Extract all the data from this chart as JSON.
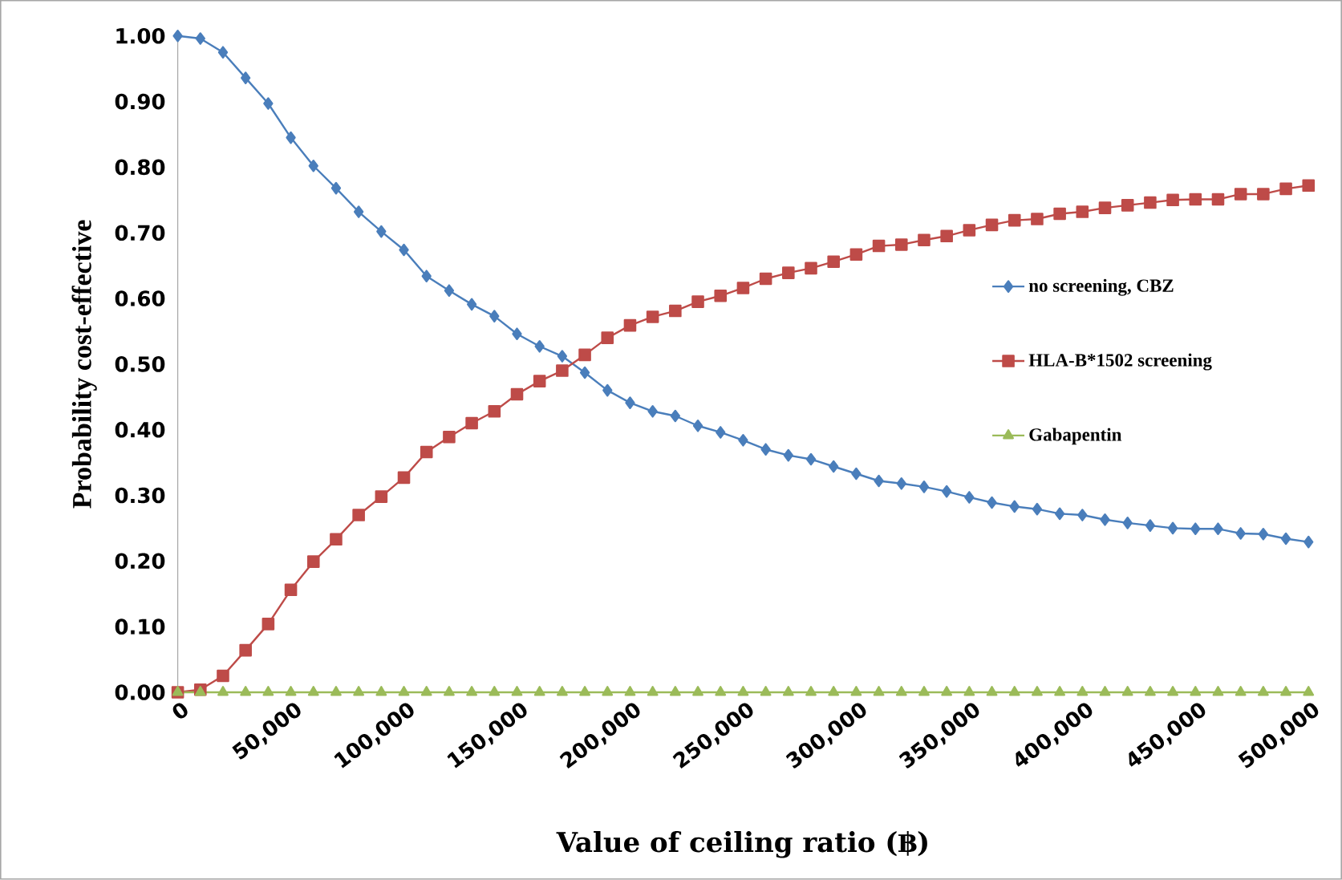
{
  "chart_data": {
    "type": "line",
    "xlabel": "Value of ceiling ratio (฿)",
    "ylabel": "Probability cost-effective",
    "x": [
      0,
      10000,
      20000,
      30000,
      40000,
      50000,
      60000,
      70000,
      80000,
      90000,
      100000,
      110000,
      120000,
      130000,
      140000,
      150000,
      160000,
      170000,
      180000,
      190000,
      200000,
      210000,
      220000,
      230000,
      240000,
      250000,
      260000,
      270000,
      280000,
      290000,
      300000,
      310000,
      320000,
      330000,
      340000,
      350000,
      360000,
      370000,
      380000,
      390000,
      400000,
      410000,
      420000,
      430000,
      440000,
      450000,
      460000,
      470000,
      480000,
      490000,
      500000
    ],
    "series": [
      {
        "name": "no screening, CBZ",
        "color": "#4a7ebb",
        "marker": "diamond",
        "values": [
          1.0,
          0.996,
          0.975,
          0.936,
          0.897,
          0.845,
          0.802,
          0.768,
          0.732,
          0.702,
          0.674,
          0.634,
          0.612,
          0.591,
          0.573,
          0.546,
          0.527,
          0.512,
          0.487,
          0.46,
          0.441,
          0.428,
          0.421,
          0.406,
          0.396,
          0.384,
          0.37,
          0.361,
          0.355,
          0.344,
          0.333,
          0.322,
          0.318,
          0.313,
          0.306,
          0.297,
          0.289,
          0.283,
          0.279,
          0.272,
          0.27,
          0.263,
          0.258,
          0.254,
          0.25,
          0.249,
          0.249,
          0.242,
          0.241,
          0.234,
          0.229
        ]
      },
      {
        "name": "HLA-B*1502 screening",
        "color": "#be4b48",
        "marker": "square",
        "values": [
          0.0,
          0.004,
          0.025,
          0.064,
          0.104,
          0.156,
          0.199,
          0.233,
          0.27,
          0.298,
          0.327,
          0.366,
          0.389,
          0.41,
          0.428,
          0.454,
          0.474,
          0.49,
          0.514,
          0.54,
          0.559,
          0.572,
          0.581,
          0.595,
          0.604,
          0.616,
          0.63,
          0.639,
          0.646,
          0.656,
          0.667,
          0.68,
          0.682,
          0.689,
          0.695,
          0.704,
          0.712,
          0.719,
          0.721,
          0.729,
          0.732,
          0.738,
          0.742,
          0.746,
          0.75,
          0.751,
          0.751,
          0.759,
          0.759,
          0.767,
          0.772
        ]
      },
      {
        "name": "Gabapentin",
        "color": "#9bbb59",
        "marker": "triangle",
        "values": [
          0,
          0,
          0,
          0,
          0,
          0,
          0,
          0,
          0,
          0,
          0,
          0,
          0,
          0,
          0,
          0,
          0,
          0,
          0,
          0,
          0,
          0,
          0,
          0,
          0,
          0,
          0,
          0,
          0,
          0,
          0,
          0,
          0,
          0,
          0,
          0,
          0,
          0,
          0,
          0,
          0,
          0,
          0,
          0,
          0,
          0,
          0,
          0,
          0,
          0,
          0
        ]
      }
    ],
    "xlim": [
      0,
      500000
    ],
    "xticks": [
      0,
      {
        "value": 50000,
        "label": "50,000"
      },
      {
        "value": 100000,
        "label": "100,000"
      },
      {
        "value": 150000,
        "label": "150,000"
      },
      {
        "value": 200000,
        "label": "200,000"
      },
      {
        "value": 250000,
        "label": "250,000"
      },
      {
        "value": 300000,
        "label": "300,000"
      },
      {
        "value": 350000,
        "label": "350,000"
      },
      {
        "value": 400000,
        "label": "400,000"
      },
      {
        "value": 450000,
        "label": "450,000"
      },
      {
        "value": 500000,
        "label": "500,000"
      }
    ],
    "ylim": [
      0,
      1
    ],
    "yticks": [
      {
        "value": 0,
        "label": "0.00"
      },
      {
        "value": 0.1,
        "label": "0.10"
      },
      {
        "value": 0.2,
        "label": "0.20"
      },
      {
        "value": 0.3,
        "label": "0.30"
      },
      {
        "value": 0.4,
        "label": "0.40"
      },
      {
        "value": 0.5,
        "label": "0.50"
      },
      {
        "value": 0.6,
        "label": "0.60"
      },
      {
        "value": 0.7,
        "label": "0.70"
      },
      {
        "value": 0.8,
        "label": "0.80"
      },
      {
        "value": 0.9,
        "label": "0.90"
      },
      {
        "value": 1.0,
        "label": "1.00"
      }
    ],
    "grid": false,
    "legend": "right",
    "line_style": "solid"
  }
}
